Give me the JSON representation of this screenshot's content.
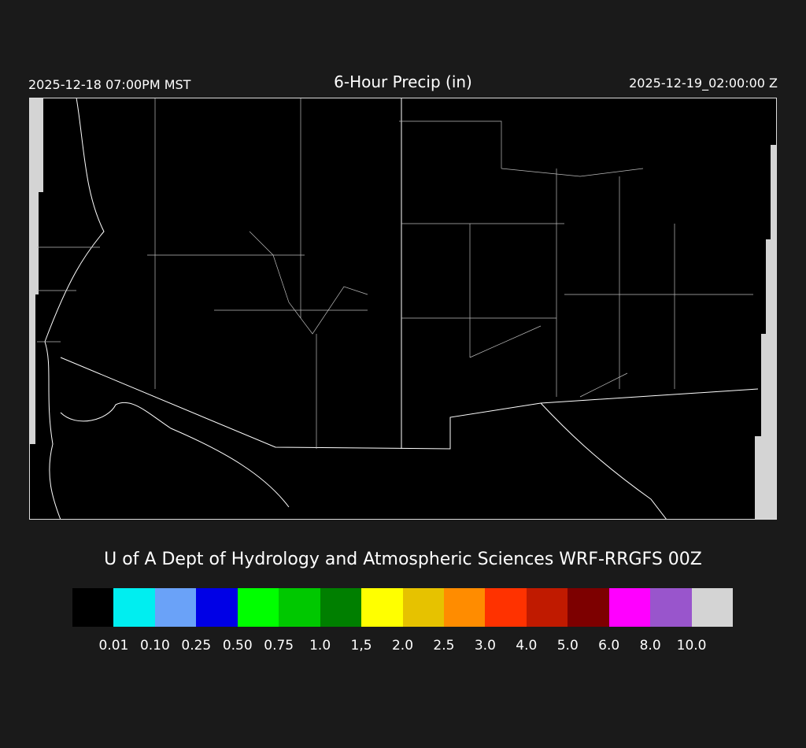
{
  "header": {
    "local_time": "2025-12-18 07:00PM MST",
    "title": "6-Hour Precip (in)",
    "valid_time": "2025-12-19_02:00:00 Z"
  },
  "credit": "U of A Dept of Hydrology and Atmospheric Sciences WRF-RRGFS 00Z",
  "legend": {
    "colors": [
      "#000000",
      "#00eef0",
      "#6aa2f8",
      "#0000e6",
      "#00ff00",
      "#00c800",
      "#007f00",
      "#ffff00",
      "#e6c200",
      "#ff8c00",
      "#ff3200",
      "#c01a00",
      "#7d0000",
      "#ff00ff",
      "#9955cc",
      "#d4d4d4"
    ],
    "labels": [
      "0.01",
      "0.10",
      "0.25",
      "0.50",
      "0.75",
      "1.0",
      "1,5",
      "2.0",
      "2.5",
      "3.0",
      "4.0",
      "5.0",
      "6.0",
      "8.0",
      "10.0"
    ]
  },
  "map": {
    "background": "#000000",
    "boundary_color": "#ffffff",
    "no_data_color": "#d4d4d4"
  }
}
